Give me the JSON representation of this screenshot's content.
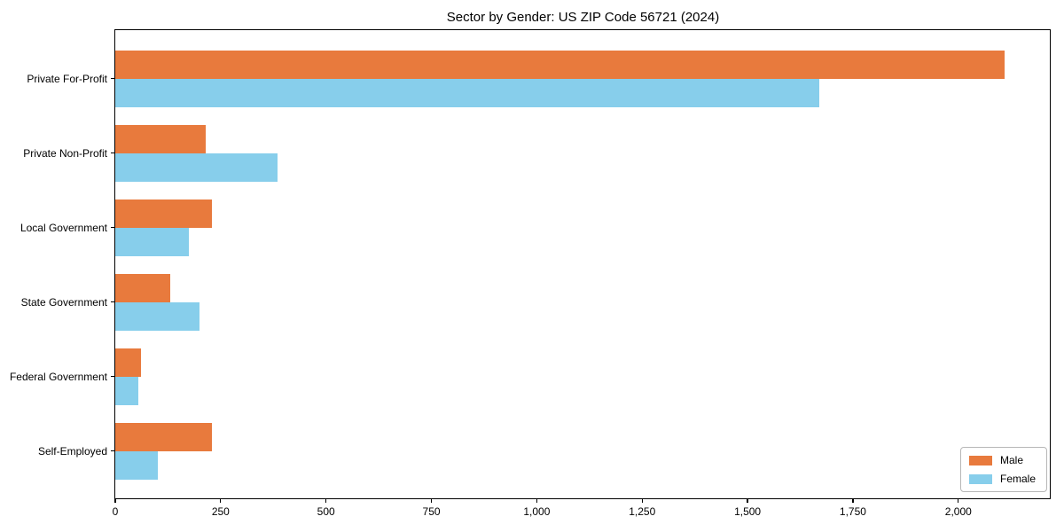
{
  "title": "Sector by Gender: US ZIP Code 56721 (2024)",
  "colors": {
    "male_bar": "#e87a3d",
    "female_bar": "#87ceeb",
    "axis": "#000000",
    "legend_border": "#b7b7b7",
    "background": "#ffffff"
  },
  "chart_data": {
    "type": "bar",
    "orientation": "horizontal",
    "title": "Sector by Gender: US ZIP Code 56721 (2024)",
    "xlabel": "",
    "ylabel": "",
    "categories": [
      "Private For-Profit",
      "Private Non-Profit",
      "Local Government",
      "State Government",
      "Federal Government",
      "Self-Employed"
    ],
    "series": [
      {
        "name": "Male",
        "color": "#e87a3d",
        "values": [
          2110,
          215,
          230,
          130,
          60,
          230
        ]
      },
      {
        "name": "Female",
        "color": "#87ceeb",
        "values": [
          1670,
          385,
          175,
          200,
          55,
          100
        ]
      }
    ],
    "xlim": [
      0,
      2215
    ],
    "xticks": [
      0,
      250,
      500,
      750,
      1000,
      1250,
      1500,
      1750,
      2000
    ],
    "xtick_labels": [
      "0",
      "250",
      "500",
      "750",
      "1,000",
      "1,250",
      "1,500",
      "1,750",
      "2,000"
    ],
    "grid": false,
    "legend_position": "lower right"
  },
  "legend": {
    "items": [
      {
        "label": "Male"
      },
      {
        "label": "Female"
      }
    ]
  }
}
